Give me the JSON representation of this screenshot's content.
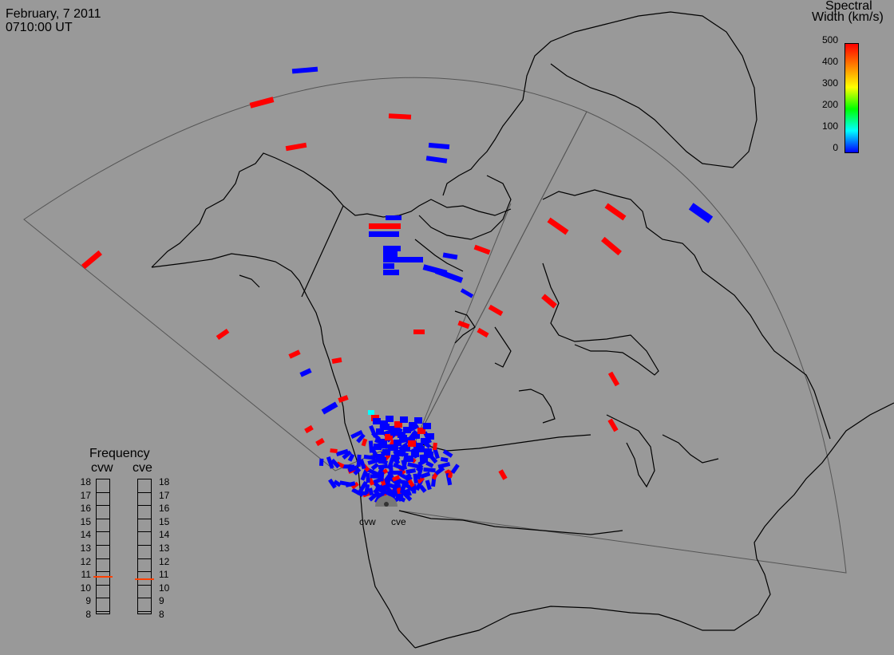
{
  "header": {
    "date": "February, 7 2011",
    "time": "0710:00 UT"
  },
  "colorbar": {
    "title_line1": "Spectral",
    "title_line2": "Width (km/s)",
    "ticks": [
      "500",
      "400",
      "300",
      "200",
      "100",
      "0"
    ],
    "stops": [
      "#ff0000",
      "#ff8000",
      "#ffff00",
      "#00ff00",
      "#00ffff",
      "#0000ff"
    ]
  },
  "radars": {
    "west_label": "cvw",
    "east_label": "cve"
  },
  "frequency": {
    "title": "Frequency",
    "col_west": "cvw",
    "col_east": "cve",
    "scale": [
      "18",
      "17",
      "16",
      "15",
      "14",
      "13",
      "12",
      "11",
      "10",
      "9",
      "8"
    ],
    "cvw_value": 10.8,
    "cve_value": 10.6,
    "marker_color": "#ff4000"
  },
  "colors": {
    "background": "#999999",
    "coast": "#000000",
    "fov": "#555555",
    "high": "#ff0000",
    "low": "#0000ff",
    "mid": "#00ffff"
  }
}
